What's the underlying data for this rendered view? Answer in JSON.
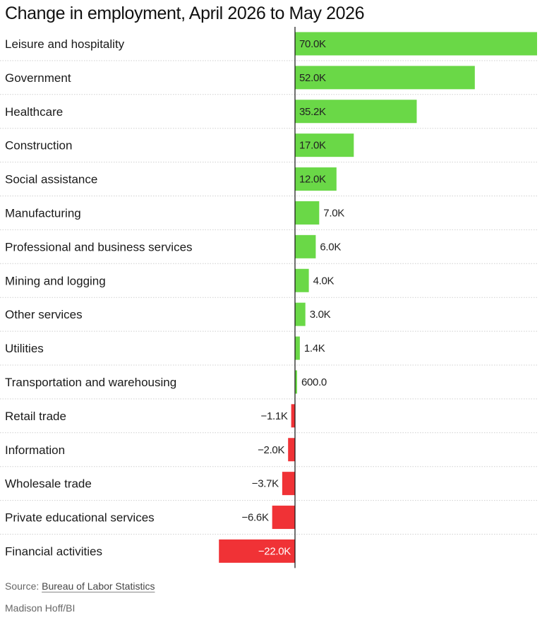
{
  "chart_data": {
    "type": "bar",
    "orientation": "horizontal",
    "title": "Change in employment, April 2026 to May 2026",
    "categories": [
      "Leisure and hospitality",
      "Government",
      "Healthcare",
      "Construction",
      "Social assistance",
      "Manufacturing",
      "Professional and business services",
      "Mining and logging",
      "Other services",
      "Utilities",
      "Transportation and warehousing",
      "Retail trade",
      "Information",
      "Wholesale trade",
      "Private educational services",
      "Financial activities"
    ],
    "values": [
      70000,
      52000,
      35200,
      17000,
      12000,
      7000,
      6000,
      4000,
      3000,
      1400,
      600,
      -1100,
      -2000,
      -3700,
      -6600,
      -22000
    ],
    "value_labels": [
      "70.0K",
      "52.0K",
      "35.2K",
      "17.0K",
      "12.0K",
      "7.0K",
      "6.0K",
      "4.0K",
      "3.0K",
      "1.4K",
      "600.0",
      "−1.1K",
      "−2.0K",
      "−3.7K",
      "−6.6K",
      "−22.0K"
    ],
    "xlim": [
      -22000,
      70000
    ],
    "grid": false,
    "legend": "none",
    "colors": {
      "positive": "#6ad847",
      "negative": "#f03236",
      "zero_line": "#111111",
      "separator": "#d0d0d0"
    }
  },
  "footer": {
    "source_prefix": "Source: ",
    "source_link": "Bureau of Labor Statistics",
    "credit": "Madison Hoff/BI"
  }
}
